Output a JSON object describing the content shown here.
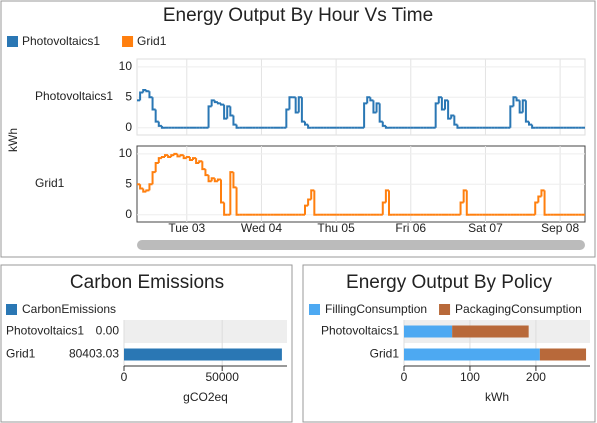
{
  "chart_data": [
    {
      "type": "step",
      "title": "Energy Output By Hour Vs Time",
      "ylabel": "kWh",
      "x": [
        0,
        1,
        2,
        3,
        4,
        5,
        6,
        7,
        8,
        9,
        10,
        11,
        12,
        13,
        14,
        15,
        16,
        17,
        18,
        19,
        20,
        21,
        22,
        23,
        24,
        25,
        26,
        27,
        28,
        29,
        30,
        31,
        32,
        33,
        34,
        35,
        36,
        37,
        38,
        39,
        40,
        41,
        42,
        43,
        44,
        45,
        46,
        47,
        48,
        49,
        50,
        51,
        52,
        53,
        54,
        55,
        56,
        57,
        58,
        59,
        60,
        61,
        62,
        63,
        64,
        65,
        66,
        67,
        68,
        69,
        70,
        71,
        72,
        73,
        74,
        75,
        76,
        77,
        78,
        79,
        80,
        81,
        82,
        83,
        84,
        85,
        86,
        87,
        88,
        89,
        90,
        91,
        92,
        93,
        94,
        95,
        96,
        97,
        98,
        99,
        100,
        101,
        102,
        103,
        104,
        105,
        106,
        107,
        108,
        109,
        110,
        111,
        112,
        113,
        114,
        115,
        116,
        117,
        118,
        119,
        120,
        121,
        122,
        123,
        124,
        125,
        126,
        127,
        128,
        129,
        130,
        131,
        132,
        133,
        134,
        135,
        136,
        137,
        138,
        139,
        140,
        141,
        142,
        143
      ],
      "xlim": [
        0,
        144
      ],
      "xticks": [
        {
          "value": 16,
          "label": "Tue 03"
        },
        {
          "value": 40,
          "label": "Wed 04"
        },
        {
          "value": 64,
          "label": "Thu 05"
        },
        {
          "value": 88,
          "label": "Fri 06"
        },
        {
          "value": 112,
          "label": "Sat 07"
        },
        {
          "value": 136,
          "label": "Sep 08"
        }
      ],
      "ylim": [
        -1.2,
        11.3
      ],
      "yticks": [
        0,
        5,
        10
      ],
      "grid": true,
      "series": [
        {
          "name": "Photovoltaics1",
          "color": "#2a77b4",
          "values": [
            4.5,
            5.8,
            6.2,
            6,
            5,
            3,
            1,
            0.3,
            0,
            0,
            0,
            0,
            0,
            0,
            0,
            0,
            0,
            0,
            0,
            0,
            0,
            0,
            0,
            3.5,
            4.5,
            4.2,
            4,
            3.8,
            1.5,
            3.5,
            2,
            0.5,
            0,
            0,
            0,
            0,
            0,
            0,
            0,
            0,
            0,
            0,
            0,
            0,
            0,
            0,
            0,
            0,
            3,
            5,
            5,
            2.5,
            5,
            1,
            0.5,
            0,
            0,
            0,
            0,
            0,
            0,
            0,
            0,
            0,
            0,
            0,
            0,
            0,
            0,
            0,
            0,
            0,
            0,
            4,
            5,
            4.5,
            2.5,
            4,
            1,
            0.3,
            0,
            0,
            0,
            0,
            0,
            0,
            0,
            0,
            0,
            0,
            0,
            0,
            0,
            0,
            0,
            0,
            4,
            5,
            3,
            4.5,
            1.5,
            2,
            0.5,
            0,
            0,
            0,
            0,
            0,
            0,
            0,
            0,
            0,
            0,
            0,
            0,
            0,
            0,
            0,
            0,
            0,
            3.5,
            5,
            4.5,
            2.5,
            4.5,
            1,
            0.5,
            0,
            0,
            0,
            0,
            0,
            0,
            0,
            0,
            0,
            0,
            0,
            0,
            0,
            0,
            0,
            0,
            0
          ]
        },
        {
          "name": "Grid1",
          "color": "#ff7f0e",
          "values": [
            5,
            4.3,
            3.8,
            4,
            5,
            7,
            8.5,
            9.3,
            9.5,
            9.8,
            9.5,
            9.8,
            10,
            9.6,
            9.8,
            9.3,
            9.5,
            9,
            9.3,
            8.5,
            8.8,
            7.5,
            6.5,
            5.5,
            6,
            5.5,
            5.8,
            2,
            0,
            0,
            7,
            4.5,
            0,
            0,
            0,
            0,
            0,
            0,
            0,
            0,
            0,
            0,
            0,
            0,
            0,
            0,
            0,
            0,
            0,
            0,
            0,
            0,
            0,
            0,
            1.5,
            2.5,
            4,
            0,
            0,
            0,
            0,
            0,
            0,
            0,
            0,
            0,
            0,
            0,
            0,
            0,
            0,
            0,
            0,
            0,
            0,
            0,
            0,
            0,
            0,
            2,
            4,
            0,
            0,
            0,
            0,
            0,
            0,
            0,
            0,
            0,
            0,
            0,
            0,
            0,
            0,
            0,
            0,
            0,
            0,
            0,
            0,
            0,
            0,
            0,
            2,
            4,
            0,
            0,
            0,
            0,
            0,
            0,
            0,
            0,
            0,
            0,
            0,
            0,
            0,
            0,
            0,
            0,
            0,
            0,
            0,
            0,
            0,
            0,
            2,
            3,
            4,
            0,
            0,
            0,
            0,
            0,
            0,
            0,
            0,
            0,
            0,
            0,
            0,
            0
          ]
        }
      ]
    },
    {
      "type": "bar",
      "title": "Carbon Emissions",
      "categories": [
        "Photovoltaics1",
        "Grid1"
      ],
      "series": [
        {
          "name": "CarbonEmissions",
          "color": "#2a77b4",
          "values": [
            0,
            80403.03
          ]
        }
      ],
      "value_labels": [
        "0.00",
        "80403.03"
      ],
      "xlabel": "gCO2eq",
      "xlim": [
        0,
        83000
      ],
      "xticks": [
        0,
        50000
      ],
      "grid": true
    },
    {
      "type": "stacked_bar",
      "title": "Energy Output By Policy",
      "categories": [
        "Photovoltaics1",
        "Grid1"
      ],
      "series": [
        {
          "name": "FillingConsumption",
          "color": "#4da9f2",
          "values": [
            73,
            206
          ]
        },
        {
          "name": "PackagingConsumption",
          "color": "#b8693a",
          "values": [
            116,
            70
          ]
        }
      ],
      "xlabel": "kWh",
      "xlim": [
        0,
        282
      ],
      "xticks": [
        0,
        100,
        200
      ],
      "grid": true
    }
  ]
}
